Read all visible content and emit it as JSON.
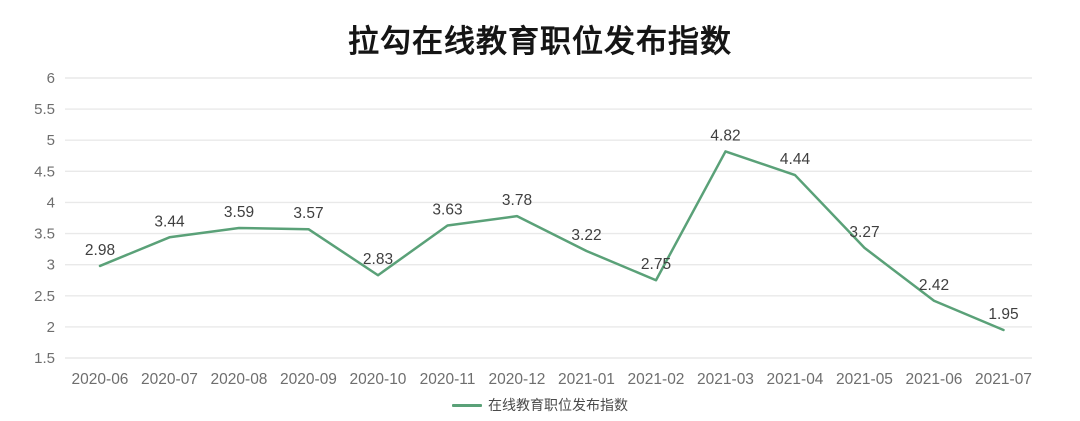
{
  "title": "拉勾在线教育职位发布指数",
  "legend": {
    "label": "在线教育职位发布指数"
  },
  "colors": {
    "line": "#5aa178",
    "grid": "#e9e9e9",
    "tick_text": "#6e6e6e",
    "label_text": "#3f3f3f",
    "title_text": "#151515"
  },
  "chart_data": {
    "type": "line",
    "title": "拉勾在线教育职位发布指数",
    "categories": [
      "2020-06",
      "2020-07",
      "2020-08",
      "2020-09",
      "2020-10",
      "2020-11",
      "2020-12",
      "2021-01",
      "2021-02",
      "2021-03",
      "2021-04",
      "2021-05",
      "2021-06",
      "2021-07"
    ],
    "series": [
      {
        "name": "在线教育职位发布指数",
        "values": [
          2.98,
          3.44,
          3.59,
          3.57,
          2.83,
          3.63,
          3.78,
          3.22,
          2.75,
          4.82,
          4.44,
          3.27,
          2.42,
          1.95
        ]
      }
    ],
    "data_labels": [
      "2.98",
      "3.44",
      "3.59",
      "3.57",
      "2.83",
      "3.63",
      "3.78",
      "3.22",
      "2.75",
      "4.82",
      "4.44",
      "3.27",
      "2.42",
      "1.95"
    ],
    "yticks": [
      "6",
      "5.5",
      "5",
      "4.5",
      "4",
      "3.5",
      "3",
      "2.5",
      "2",
      "1.5"
    ],
    "ylim": [
      1.5,
      6
    ],
    "xlabel": "",
    "ylabel": "",
    "grid": true,
    "legend_position": "bottom"
  }
}
